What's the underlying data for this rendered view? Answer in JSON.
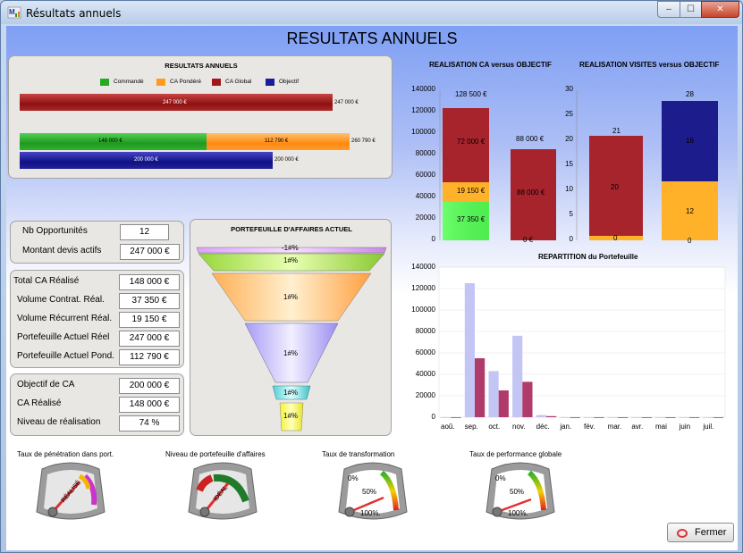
{
  "window": {
    "title": "Résultats annuels",
    "controls": {
      "minimize": "–",
      "maximize": "☐",
      "close": "✕"
    }
  },
  "main_title": "RESULTATS ANNUELS",
  "results_panel": {
    "title": "RESULTATS ANNUELS",
    "legend": [
      {
        "label": "Commandé",
        "color": "#22aa22"
      },
      {
        "label": "CA Pondéré",
        "color": "#ff9a1f"
      },
      {
        "label": "CA Global",
        "color": "#a01818"
      },
      {
        "label": "Objectif",
        "color": "#1a1a9a"
      }
    ],
    "bars": {
      "global_inner": "247 000 €",
      "global_end": "247 000 €",
      "commande": "148 000 €",
      "pondere": "112 790 €",
      "combined_end": "260 790 €",
      "objectif_inner": "200 000 €",
      "objectif_end": "200 000 €"
    },
    "values": {
      "global": 247000,
      "commande": 148000,
      "pondere": 112790,
      "objectif": 200000
    }
  },
  "opportunities": [
    {
      "label": "Nb Opportunités",
      "value": "12"
    },
    {
      "label": "Montant devis actifs",
      "value": "247 000 €"
    }
  ],
  "totals": [
    {
      "label": "Total CA Réalisé",
      "value": "148 000 €"
    },
    {
      "label": "Volume Contrat. Réal.",
      "value": "37 350 €"
    },
    {
      "label": "Volume Récurrent Réal.",
      "value": "19 150 €"
    },
    {
      "label": "Portefeuille Actuel Réel",
      "value": "247 000 €"
    },
    {
      "label": "Portefeuille Actuel Pond.",
      "value": "112 790 €"
    }
  ],
  "objective": [
    {
      "label": "Objectif de CA",
      "value": "200 000 €"
    },
    {
      "label": "CA Réalisé",
      "value": "148 000 €"
    },
    {
      "label": "Niveau de réalisation",
      "value": "74 %"
    }
  ],
  "funnel": {
    "title": "PORTEFEUILLE D'AFFAIRES ACTUEL",
    "labels": [
      "-1#%",
      "1#%",
      "1#%",
      "1#%",
      "1#%",
      "1#%"
    ]
  },
  "chart_ca": {
    "title": "REALISATION CA versus OBJECTIF",
    "y_ticks": [
      "140000",
      "120000",
      "100000",
      "80000",
      "60000",
      "40000",
      "20000",
      "0"
    ],
    "bar1_total": "128 500 €",
    "bar1_segments": [
      "37 350 €",
      "19 150 €",
      "72 000 €"
    ],
    "bar2_total": "88 000 €",
    "bar2_inner": "88 000 €",
    "bar2_zero": "0 €"
  },
  "chart_visits": {
    "title": "REALISATION VISITES versus OBJECTIF",
    "y_ticks": [
      "30",
      "25",
      "20",
      "15",
      "10",
      "5",
      "0"
    ],
    "bar1_total": "21",
    "bar1_segments": [
      "0",
      "20"
    ],
    "bar2_total": "28",
    "bar2_segments": [
      "0",
      "12",
      "16"
    ]
  },
  "chart_repartition": {
    "title": "REPARTITION du Portefeuille",
    "y_ticks": [
      "140000",
      "120000",
      "100000",
      "80000",
      "60000",
      "40000",
      "20000",
      "0"
    ],
    "months": [
      "aoû.",
      "sep.",
      "oct.",
      "nov.",
      "déc.",
      "jan.",
      "fév.",
      "mar.",
      "avr.",
      "mai",
      "juin",
      "juil."
    ]
  },
  "chart_data": {
    "type": "bar",
    "title": "REPARTITION du Portefeuille",
    "categories": [
      "aoû.",
      "sep.",
      "oct.",
      "nov.",
      "déc.",
      "jan.",
      "fév.",
      "mar.",
      "avr.",
      "mai",
      "juin",
      "juil."
    ],
    "series": [
      {
        "values": [
          0,
          125000,
          43000,
          76000,
          2000,
          0,
          0,
          0,
          0,
          0,
          0,
          0
        ],
        "color": "#c3c6f4"
      },
      {
        "values": [
          0,
          55000,
          25000,
          33000,
          1000,
          0,
          0,
          0,
          0,
          0,
          0,
          0
        ],
        "color": "#b03a6a"
      }
    ],
    "ylim": [
      0,
      140000
    ]
  },
  "gauges": [
    {
      "title": "Taux de pénétration dans port.",
      "face": "RÉALISÉ"
    },
    {
      "title": "Niveau de portefeuille d'affaires",
      "face": "IDÉAL"
    },
    {
      "title": "Taux de transformation",
      "ticks": [
        "0%",
        "50%",
        "100%."
      ]
    },
    {
      "title": "Taux de performance globale",
      "ticks": [
        "0%",
        "50%",
        "100%."
      ]
    }
  ],
  "close_button": "Fermer"
}
